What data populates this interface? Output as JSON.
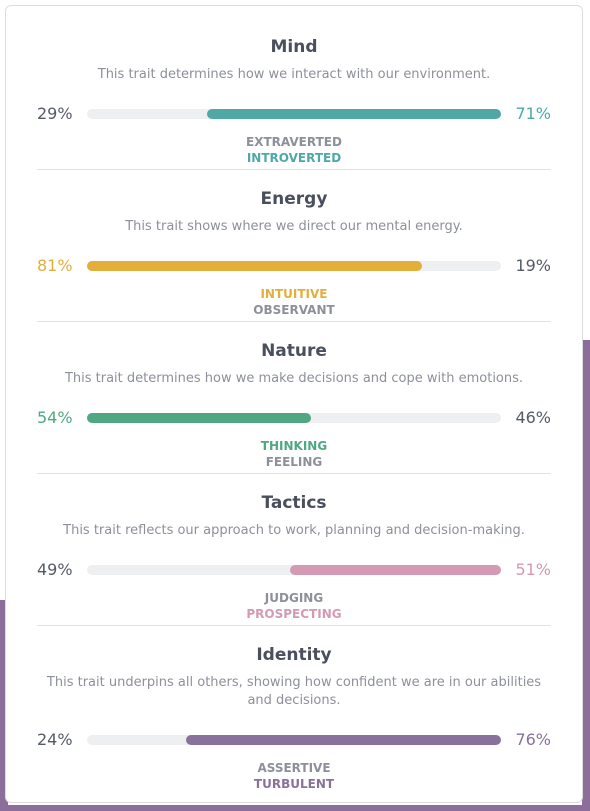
{
  "traits": [
    {
      "title": "Mind",
      "description": "This trait determines how we interact with our environment.",
      "color": "#4fa8a6",
      "dominant": "right",
      "left": {
        "label": "EXTRAVERTED",
        "value": 29,
        "value_label": "29%"
      },
      "right": {
        "label": "INTROVERTED",
        "value": 71,
        "value_label": "71%"
      }
    },
    {
      "title": "Energy",
      "description": "This trait shows where we direct our mental energy.",
      "color": "#e4ae3a",
      "dominant": "left",
      "left": {
        "label": "INTUITIVE",
        "value": 81,
        "value_label": "81%"
      },
      "right": {
        "label": "OBSERVANT",
        "value": 19,
        "value_label": "19%"
      }
    },
    {
      "title": "Nature",
      "description": "This trait determines how we make decisions and cope with emotions.",
      "color": "#4fa882",
      "dominant": "left",
      "left": {
        "label": "THINKING",
        "value": 54,
        "value_label": "54%"
      },
      "right": {
        "label": "FEELING",
        "value": 46,
        "value_label": "46%"
      }
    },
    {
      "title": "Tactics",
      "description": "This trait reflects our approach to work, planning and decision-making.",
      "color": "#d49ab3",
      "dominant": "right",
      "left": {
        "label": "JUDGING",
        "value": 49,
        "value_label": "49%"
      },
      "right": {
        "label": "PROSPECTING",
        "value": 51,
        "value_label": "51%"
      }
    },
    {
      "title": "Identity",
      "description": "This trait underpins all others, showing how confident we are in our abilities and decisions.",
      "color": "#88729c",
      "dominant": "right",
      "left": {
        "label": "ASSERTIVE",
        "value": 24,
        "value_label": "24%"
      },
      "right": {
        "label": "TURBULENT",
        "value": 76,
        "value_label": "76%"
      }
    }
  ]
}
